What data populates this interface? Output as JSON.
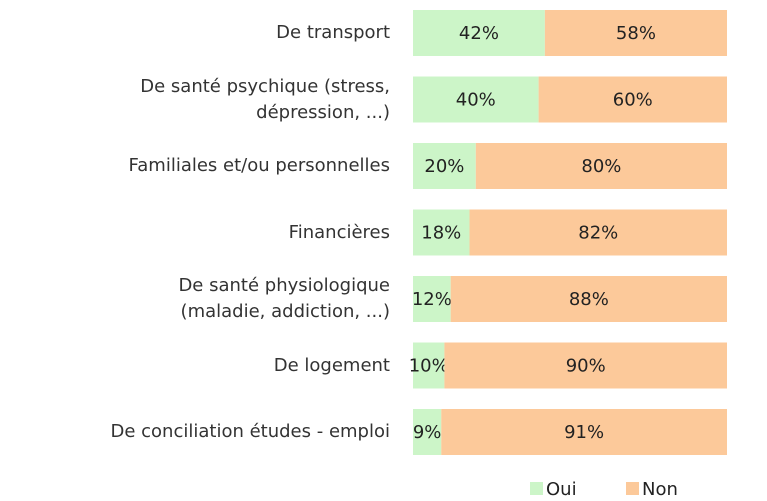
{
  "chart_data": {
    "type": "stacked-bar-horizontal",
    "categories": [
      "De transport",
      "De santé psychique (stress,\ndépression, ...)",
      "Familiales et/ou personnelles",
      "Financières",
      "De santé physiologique\n(maladie, addiction, ...)",
      "De logement",
      "De conciliation études - emploi"
    ],
    "series": [
      {
        "name": "Oui",
        "color": "#ccf5c8",
        "values": [
          42,
          40,
          20,
          18,
          12,
          10,
          9
        ],
        "value_labels": [
          "42%",
          "40%",
          "20%",
          "18%",
          "12%",
          "10%",
          "9%"
        ]
      },
      {
        "name": "Non",
        "color": "#fcc99a",
        "values": [
          58,
          60,
          80,
          82,
          88,
          90,
          91
        ],
        "value_labels": [
          "58%",
          "60%",
          "80%",
          "82%",
          "88%",
          "90%",
          "91%"
        ]
      }
    ],
    "xlim": [
      0,
      100
    ],
    "legend": "bottom"
  }
}
